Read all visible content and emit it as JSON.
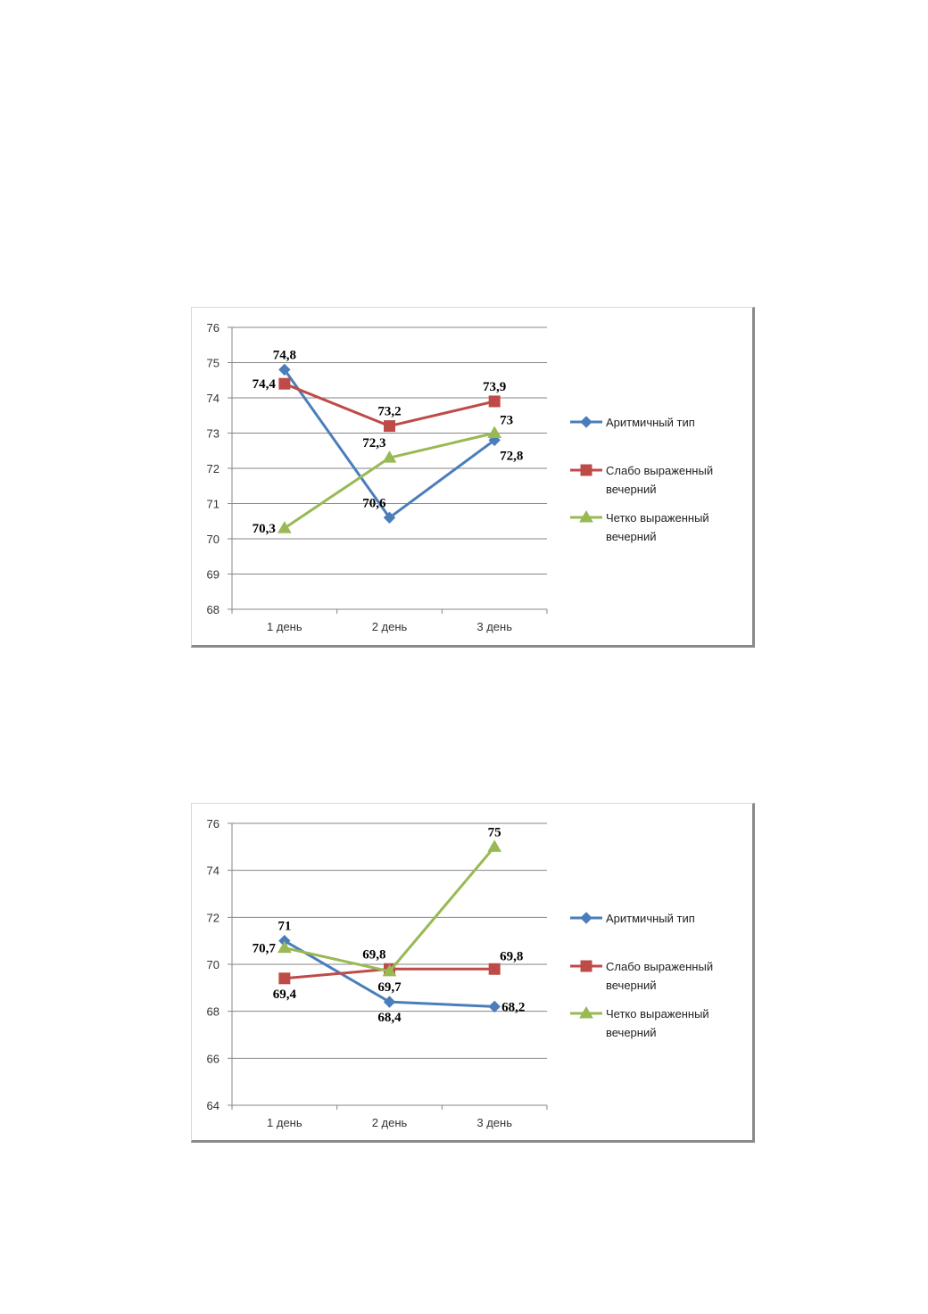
{
  "colors": {
    "aritm": "#4a7ebb",
    "slabo": "#be4b48",
    "chetko": "#98b954",
    "grid": "#868686",
    "axis": "#868686"
  },
  "chart_data": [
    {
      "type": "line",
      "title": "",
      "xlabel": "",
      "ylabel": "",
      "categories": [
        "1 день",
        "2 день",
        "3 день"
      ],
      "ylim": [
        68,
        76
      ],
      "ytick_step": 1,
      "yticks": [
        "68",
        "69",
        "70",
        "71",
        "72",
        "73",
        "74",
        "75",
        "76"
      ],
      "grid": true,
      "legend_position": "right",
      "series": [
        {
          "name": "Аритмичный тип",
          "marker": "diamond",
          "color_key": "aritm",
          "values": [
            74.8,
            70.6,
            72.8
          ],
          "labels": [
            "74,8",
            "70,6",
            "72,8"
          ],
          "label_pos": [
            "above",
            "above-left",
            "below-right"
          ]
        },
        {
          "name": "Слабо выраженный вечерний",
          "name_lines": [
            "Слабо выраженный",
            "вечерний"
          ],
          "marker": "square",
          "color_key": "slabo",
          "values": [
            74.4,
            73.2,
            73.9
          ],
          "labels": [
            "74,4",
            "73,2",
            "73,9"
          ],
          "label_pos": [
            "left",
            "above",
            "above"
          ]
        },
        {
          "name": "Четко выраженный вечерний",
          "name_lines": [
            "Четко выраженный",
            "вечерний"
          ],
          "marker": "triangle",
          "color_key": "chetko",
          "values": [
            70.3,
            72.3,
            73
          ],
          "labels": [
            "70,3",
            "72,3",
            "73"
          ],
          "label_pos": [
            "left",
            "above-left",
            "above-right"
          ]
        }
      ]
    },
    {
      "type": "line",
      "title": "",
      "xlabel": "",
      "ylabel": "",
      "categories": [
        "1 день",
        "2 день",
        "3 день"
      ],
      "ylim": [
        64,
        76
      ],
      "ytick_step": 2,
      "yticks": [
        "64",
        "66",
        "68",
        "70",
        "72",
        "74",
        "76"
      ],
      "grid": true,
      "legend_position": "right",
      "series": [
        {
          "name": "Аритмичный тип",
          "marker": "diamond",
          "color_key": "aritm",
          "values": [
            71,
            68.4,
            68.2
          ],
          "labels": [
            "71",
            "68,4",
            "68,2"
          ],
          "label_pos": [
            "above",
            "below",
            "right"
          ]
        },
        {
          "name": "Слабо выраженный вечерний",
          "name_lines": [
            "Слабо выраженный",
            "вечерний"
          ],
          "marker": "square",
          "color_key": "slabo",
          "values": [
            69.4,
            69.8,
            69.8
          ],
          "labels": [
            "69,4",
            "69,8",
            "69,8"
          ],
          "label_pos": [
            "below",
            "above-left",
            "above-right"
          ]
        },
        {
          "name": "Четко выраженный вечерний",
          "name_lines": [
            "Четко выраженный",
            "вечерний"
          ],
          "marker": "triangle",
          "color_key": "chetko",
          "values": [
            70.7,
            69.7,
            75
          ],
          "labels": [
            "70,7",
            "69,7",
            "75"
          ],
          "label_pos": [
            "left",
            "below",
            "above"
          ]
        }
      ]
    }
  ]
}
